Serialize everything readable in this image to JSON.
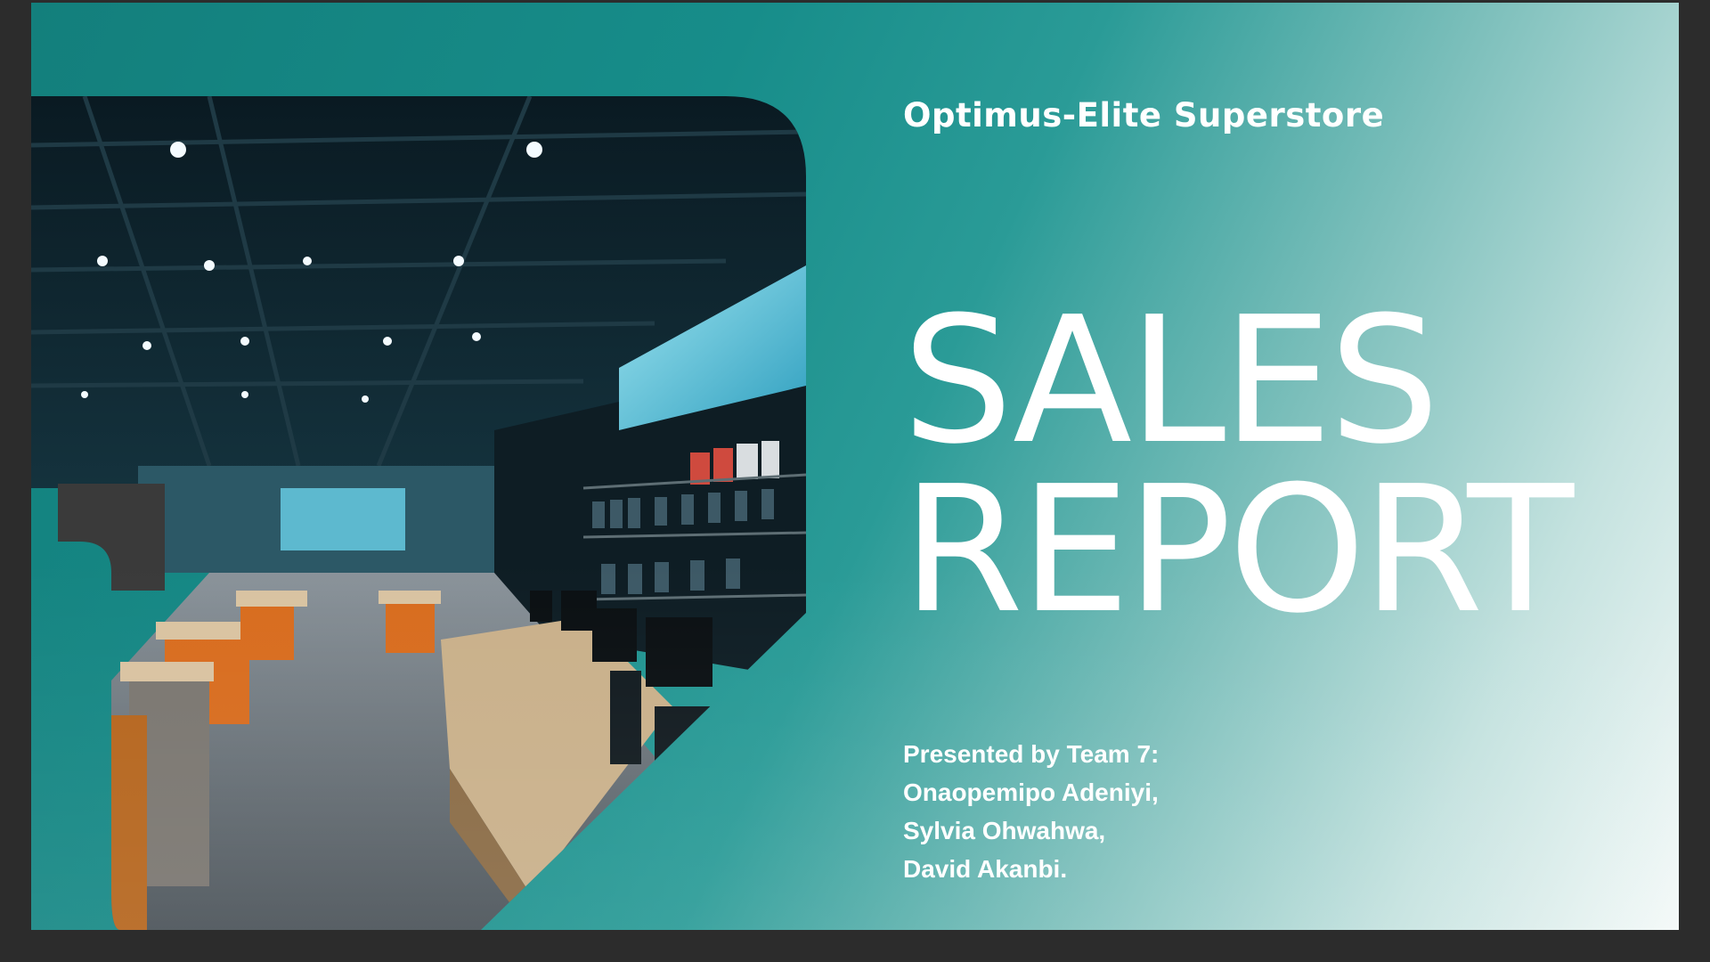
{
  "slide": {
    "store_name": "Optimus-Elite Superstore",
    "title_line_1": "SALES",
    "title_line_2": "REPORT",
    "presented_by": "Presented by Team 7:",
    "presenters": [
      "Onaopemipo Adeniyi,",
      "Sylvia Ohwahwa,",
      "David Akanbi."
    ]
  },
  "colors": {
    "teal_dark": "#137f7c",
    "teal_mid": "#2a9b97",
    "teal_light": "#c4e2df",
    "text": "#ffffff",
    "frame": "#2c2c2c"
  },
  "image": {
    "subject": "electronics-store-interior-photo"
  }
}
